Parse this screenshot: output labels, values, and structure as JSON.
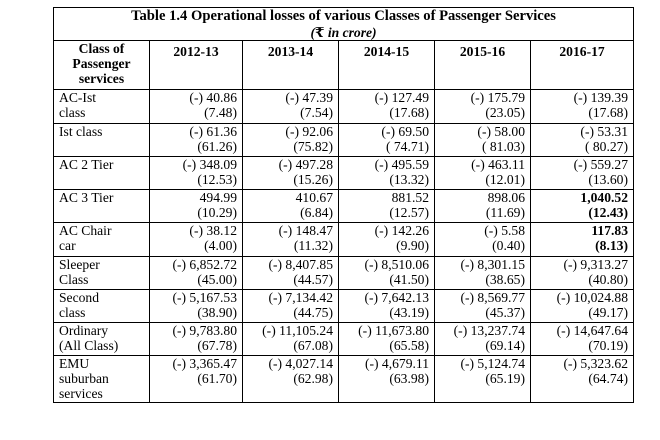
{
  "table": {
    "title": "Table 1.4  Operational losses of various Classes of Passenger Services",
    "subtitle_symbol": "₹",
    "subtitle_text": " in crore)",
    "subtitle_open": "(",
    "headers": {
      "class_line1": "Class of",
      "class_line2": "Passenger",
      "class_line3": "services",
      "years": [
        "2012-13",
        "2013-14",
        "2014-15",
        "2015-16",
        "2016-17"
      ]
    },
    "rows": [
      {
        "label1": "AC-Ist",
        "label2": "class",
        "values": [
          [
            "(-) 40.86",
            "(7.48)"
          ],
          [
            "(-) 47.39",
            "(7.54)"
          ],
          [
            "(-) 127.49",
            "(17.68)"
          ],
          [
            "(-) 175.79",
            "(23.05)"
          ],
          [
            "(-) 139.39",
            "(17.68)"
          ]
        ]
      },
      {
        "label1": "Ist class",
        "label2": "",
        "values": [
          [
            "(-) 61.36",
            "(61.26)"
          ],
          [
            "(-) 92.06",
            "(75.82)"
          ],
          [
            "(-) 69.50",
            "( 74.71)"
          ],
          [
            "(-) 58.00",
            "( 81.03)"
          ],
          [
            "(-) 53.31",
            "( 80.27)"
          ]
        ]
      },
      {
        "label1": "AC 2 Tier",
        "label2": "",
        "values": [
          [
            "(-) 348.09",
            "(12.53)"
          ],
          [
            "(-) 497.28",
            "(15.26)"
          ],
          [
            "(-) 495.59",
            "(13.32)"
          ],
          [
            "(-) 463.11",
            "(12.01)"
          ],
          [
            "(-) 559.27",
            "(13.60)"
          ]
        ]
      },
      {
        "label1": "AC 3 Tier",
        "label2": "",
        "values": [
          [
            "494.99",
            "(10.29)"
          ],
          [
            "410.67",
            "(6.84)"
          ],
          [
            "881.52",
            "(12.57)"
          ],
          [
            "898.06",
            "(11.69)"
          ],
          [
            "1,040.52",
            "(12.43)"
          ]
        ]
      },
      {
        "label1": "AC  Chair",
        "label2": "car",
        "values": [
          [
            "(-) 38.12",
            "(4.00)"
          ],
          [
            "(-) 148.47",
            "(11.32)"
          ],
          [
            "(-) 142.26",
            "(9.90)"
          ],
          [
            "(-) 5.58",
            "(0.40)"
          ],
          [
            "117.83",
            "(8.13)"
          ]
        ]
      },
      {
        "label1": "Sleeper",
        "label2": "Class",
        "values": [
          [
            "(-) 6,852.72",
            "(45.00)"
          ],
          [
            "(-) 8,407.85",
            "(44.57)"
          ],
          [
            "(-) 8,510.06",
            "(41.50)"
          ],
          [
            "(-) 8,301.15",
            "(38.65)"
          ],
          [
            "(-) 9,313.27",
            "(40.80)"
          ]
        ]
      },
      {
        "label1": "Second",
        "label2": "class",
        "values": [
          [
            "(-) 5,167.53",
            "(38.90)"
          ],
          [
            "(-) 7,134.42",
            "(44.75)"
          ],
          [
            "(-) 7,642.13",
            "(43.19)"
          ],
          [
            "(-) 8,569.77",
            "(45.37)"
          ],
          [
            "(-) 10,024.88",
            "(49.17)"
          ]
        ]
      },
      {
        "label1": "Ordinary",
        "label2": "(All Class)",
        "values": [
          [
            "(-) 9,783.80",
            "(67.78)"
          ],
          [
            "(-) 11,105.24",
            "(67.08)"
          ],
          [
            "(-) 11,673.80",
            "(65.58)"
          ],
          [
            "(-) 13,237.74",
            "(69.14)"
          ],
          [
            "(-) 14,647.64",
            "(70.19)"
          ]
        ]
      },
      {
        "label1": "EMU",
        "label2": "suburban",
        "label3": "services",
        "values": [
          [
            "(-) 3,365.47",
            "(61.70)"
          ],
          [
            "(-) 4,027.14",
            "(62.98)"
          ],
          [
            "(-) 4,679.11",
            "(63.98)"
          ],
          [
            "(-) 5,124.74",
            "(65.19)"
          ],
          [
            "(-) 5,323.62",
            "(64.74)"
          ]
        ]
      }
    ]
  }
}
